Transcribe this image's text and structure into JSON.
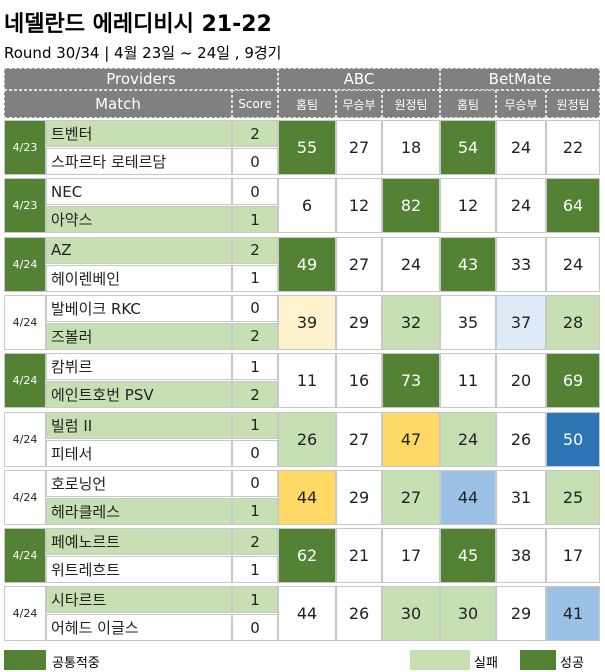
{
  "title": "네델란드 에레디비시 21-22",
  "subtitle": "Round 30/34 | 4월 23일 ~ 24일 , 9경기",
  "header": {
    "providers": "Providers",
    "abc": "ABC",
    "betmate": "BetMate",
    "match": "Match",
    "score": "Score",
    "columns": [
      "홈팀",
      "무승부",
      "원정팀",
      "홈팀",
      "무승부",
      "원정팀"
    ]
  },
  "matches": [
    {
      "date": "4/23",
      "date_color": "#548235",
      "home": "트벤터",
      "home_score": 2,
      "home_color": "#c6e0b4",
      "away": "스파르타 로테르담",
      "away_score": 0,
      "away_color": null,
      "abc": [
        55,
        27,
        18
      ],
      "abc_colors": [
        "#548235",
        null,
        null
      ],
      "betmate": [
        54,
        24,
        22
      ],
      "betmate_colors": [
        "#548235",
        null,
        null
      ]
    },
    {
      "date": "4/23",
      "date_color": "#548235",
      "home": "NEC",
      "home_score": 0,
      "home_color": null,
      "away": "아약스",
      "away_score": 1,
      "away_color": "#c6e0b4",
      "abc": [
        6,
        12,
        82
      ],
      "abc_colors": [
        null,
        null,
        "#548235"
      ],
      "betmate": [
        12,
        24,
        64
      ],
      "betmate_colors": [
        null,
        null,
        "#548235"
      ]
    },
    {
      "date": "4/24",
      "date_color": "#548235",
      "home": "AZ",
      "home_score": 2,
      "home_color": "#c6e0b4",
      "away": "헤이렌베인",
      "away_score": 1,
      "away_color": null,
      "abc": [
        49,
        27,
        24
      ],
      "abc_colors": [
        "#548235",
        null,
        null
      ],
      "betmate": [
        43,
        33,
        24
      ],
      "betmate_colors": [
        "#548235",
        null,
        null
      ]
    },
    {
      "date": "4/24",
      "date_color": null,
      "home": "발베이크 RKC",
      "home_score": 0,
      "home_color": null,
      "away": "즈볼러",
      "away_score": 2,
      "away_color": "#c6e0b4",
      "abc": [
        39,
        29,
        32
      ],
      "abc_colors": [
        "#fff2cc",
        null,
        "#c6e0b4"
      ],
      "betmate": [
        35,
        37,
        28
      ],
      "betmate_colors": [
        null,
        "#ddebf7",
        "#c6e0b4"
      ]
    },
    {
      "date": "4/24",
      "date_color": "#548235",
      "home": "캄뷔르",
      "home_score": 1,
      "home_color": null,
      "away": "에인트호번 PSV",
      "away_score": 2,
      "away_color": "#c6e0b4",
      "abc": [
        11,
        16,
        73
      ],
      "abc_colors": [
        null,
        null,
        "#548235"
      ],
      "betmate": [
        11,
        20,
        69
      ],
      "betmate_colors": [
        null,
        null,
        "#548235"
      ]
    },
    {
      "date": "4/24",
      "date_color": null,
      "home": "빌럼 II",
      "home_score": 1,
      "home_color": "#c6e0b4",
      "away": "피테서",
      "away_score": 0,
      "away_color": null,
      "abc": [
        26,
        27,
        47
      ],
      "abc_colors": [
        "#c6e0b4",
        null,
        "#ffd966"
      ],
      "betmate": [
        24,
        26,
        50
      ],
      "betmate_colors": [
        "#c6e0b4",
        null,
        "#2e75b6"
      ]
    },
    {
      "date": "4/24",
      "date_color": null,
      "home": "호로닝언",
      "home_score": 0,
      "home_color": null,
      "away": "헤라클레스",
      "away_score": 1,
      "away_color": "#c6e0b4",
      "abc": [
        44,
        29,
        27
      ],
      "abc_colors": [
        "#ffd966",
        null,
        "#c6e0b4"
      ],
      "betmate": [
        44,
        31,
        25
      ],
      "betmate_colors": [
        "#9bc2e6",
        null,
        "#c6e0b4"
      ]
    },
    {
      "date": "4/24",
      "date_color": "#548235",
      "home": "페예노르트",
      "home_score": 2,
      "home_color": "#c6e0b4",
      "away": "위트레흐트",
      "away_score": 1,
      "away_color": null,
      "abc": [
        62,
        21,
        17
      ],
      "abc_colors": [
        "#548235",
        null,
        null
      ],
      "betmate": [
        45,
        38,
        17
      ],
      "betmate_colors": [
        "#548235",
        null,
        null
      ]
    },
    {
      "date": "4/24",
      "date_color": null,
      "home": "시타르트",
      "home_score": 1,
      "home_color": "#c6e0b4",
      "away": "어헤드 이글스",
      "away_score": 0,
      "away_color": null,
      "abc": [
        44,
        26,
        30
      ],
      "abc_colors": [
        null,
        null,
        "#c6e0b4"
      ],
      "betmate": [
        30,
        29,
        41
      ],
      "betmate_colors": [
        "#c6e0b4",
        null,
        "#9bc2e6"
      ]
    }
  ],
  "legend": [
    {
      "label": "공통적중",
      "color": "#548235"
    },
    {
      "label": "실패",
      "color": "#c6e0b4"
    },
    {
      "label": "성공",
      "color": "#548235"
    }
  ]
}
